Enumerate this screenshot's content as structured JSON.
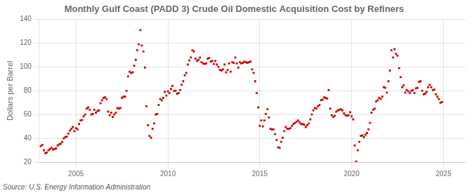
{
  "chart_data": {
    "type": "scatter",
    "title": "Monthly Gulf Coast (PADD 3) Crude Oil Domestic Acquisition Cost by Refiners",
    "y_label": "Dollars per Barrel",
    "annotations": [
      "Source: U.S. Energy Information Administration"
    ],
    "color": "#cc0000",
    "marker": "square",
    "grid": true,
    "xlim": [
      2003.0,
      2026.2
    ],
    "xticks": [
      2005,
      2010,
      2015,
      2020,
      2025
    ],
    "ylim": [
      20,
      140
    ],
    "yticks": [
      20,
      40,
      60,
      80,
      100,
      120,
      140
    ],
    "x": [
      2003.083,
      2003.167,
      2003.25,
      2003.333,
      2003.417,
      2003.5,
      2003.583,
      2003.667,
      2003.75,
      2003.833,
      2003.917,
      2004.0,
      2004.083,
      2004.167,
      2004.25,
      2004.333,
      2004.417,
      2004.5,
      2004.583,
      2004.667,
      2004.75,
      2004.833,
      2004.917,
      2005.0,
      2005.083,
      2005.167,
      2005.25,
      2005.333,
      2005.417,
      2005.5,
      2005.583,
      2005.667,
      2005.75,
      2005.833,
      2005.917,
      2006.0,
      2006.083,
      2006.167,
      2006.25,
      2006.333,
      2006.417,
      2006.5,
      2006.583,
      2006.667,
      2006.75,
      2006.833,
      2006.917,
      2007.0,
      2007.083,
      2007.167,
      2007.25,
      2007.333,
      2007.417,
      2007.5,
      2007.583,
      2007.667,
      2007.75,
      2007.833,
      2007.917,
      2008.0,
      2008.083,
      2008.167,
      2008.25,
      2008.333,
      2008.417,
      2008.5,
      2008.583,
      2008.667,
      2008.75,
      2008.833,
      2008.917,
      2009.0,
      2009.083,
      2009.167,
      2009.25,
      2009.333,
      2009.417,
      2009.5,
      2009.583,
      2009.667,
      2009.75,
      2009.833,
      2009.917,
      2010.0,
      2010.083,
      2010.167,
      2010.25,
      2010.333,
      2010.417,
      2010.5,
      2010.583,
      2010.667,
      2010.75,
      2010.833,
      2010.917,
      2011.0,
      2011.083,
      2011.167,
      2011.25,
      2011.333,
      2011.417,
      2011.5,
      2011.583,
      2011.667,
      2011.75,
      2011.833,
      2011.917,
      2012.0,
      2012.083,
      2012.167,
      2012.25,
      2012.333,
      2012.417,
      2012.5,
      2012.583,
      2012.667,
      2012.75,
      2012.833,
      2012.917,
      2013.0,
      2013.083,
      2013.167,
      2013.25,
      2013.333,
      2013.417,
      2013.5,
      2013.583,
      2013.667,
      2013.75,
      2013.833,
      2013.917,
      2014.0,
      2014.083,
      2014.167,
      2014.25,
      2014.333,
      2014.417,
      2014.5,
      2014.583,
      2014.667,
      2014.75,
      2014.833,
      2014.917,
      2015.0,
      2015.083,
      2015.167,
      2015.25,
      2015.333,
      2015.417,
      2015.5,
      2015.583,
      2015.667,
      2015.75,
      2015.833,
      2015.917,
      2016.0,
      2016.083,
      2016.167,
      2016.25,
      2016.333,
      2016.417,
      2016.5,
      2016.583,
      2016.667,
      2016.75,
      2016.833,
      2016.917,
      2017.0,
      2017.083,
      2017.167,
      2017.25,
      2017.333,
      2017.417,
      2017.5,
      2017.583,
      2017.667,
      2017.75,
      2017.833,
      2017.917,
      2018.0,
      2018.083,
      2018.167,
      2018.25,
      2018.333,
      2018.417,
      2018.5,
      2018.583,
      2018.667,
      2018.75,
      2018.833,
      2018.917,
      2019.0,
      2019.083,
      2019.167,
      2019.25,
      2019.333,
      2019.417,
      2019.5,
      2019.583,
      2019.667,
      2019.75,
      2019.833,
      2019.917,
      2020.0,
      2020.083,
      2020.167,
      2020.25,
      2020.333,
      2020.417,
      2020.5,
      2020.583,
      2020.667,
      2020.75,
      2020.833,
      2020.917,
      2021.0,
      2021.083,
      2021.167,
      2021.25,
      2021.333,
      2021.417,
      2021.5,
      2021.583,
      2021.667,
      2021.75,
      2021.833,
      2021.917,
      2022.0,
      2022.083,
      2022.167,
      2022.25,
      2022.333,
      2022.417,
      2022.5,
      2022.583,
      2022.667,
      2022.75,
      2022.833,
      2022.917,
      2023.0,
      2023.083,
      2023.167,
      2023.25,
      2023.333,
      2023.417,
      2023.5,
      2023.583,
      2023.667,
      2023.75,
      2023.833,
      2023.917,
      2024.0,
      2024.083,
      2024.167,
      2024.25,
      2024.333,
      2024.417,
      2024.5,
      2024.583,
      2024.667,
      2024.75,
      2024.833,
      2024.917
    ],
    "values": [
      33.5,
      34.5,
      30.0,
      27.5,
      28.0,
      30.0,
      31.0,
      32.0,
      30.5,
      31.0,
      31.5,
      34.0,
      35.0,
      35.5,
      37.0,
      40.0,
      41.0,
      41.5,
      44.0,
      46.5,
      48.0,
      49.5,
      46.0,
      48.5,
      47.5,
      52.0,
      55.0,
      55.5,
      58.5,
      60.0,
      65.0,
      66.0,
      64.0,
      60.0,
      60.5,
      64.0,
      61.5,
      63.0,
      63.5,
      69.5,
      72.0,
      74.0,
      74.5,
      73.0,
      62.5,
      59.5,
      61.5,
      58.0,
      60.0,
      61.5,
      65.5,
      65.0,
      65.5,
      74.0,
      75.0,
      75.0,
      80.0,
      92.0,
      96.0,
      95.0,
      95.5,
      101.0,
      106.0,
      114.0,
      119.0,
      131.0,
      118.0,
      113.0,
      99.5,
      67.0,
      51.0,
      42.0,
      40.5,
      48.0,
      52.5,
      60.0,
      60.5,
      68.0,
      73.0,
      72.0,
      74.0,
      79.0,
      76.0,
      79.5,
      78.0,
      81.5,
      84.0,
      80.0,
      80.0,
      77.5,
      78.0,
      80.5,
      85.0,
      88.0,
      93.0,
      95.0,
      102.0,
      105.5,
      108.0,
      114.0,
      113.0,
      107.0,
      105.0,
      106.0,
      108.0,
      104.0,
      103.0,
      102.5,
      103.0,
      107.0,
      107.5,
      104.5,
      105.0,
      102.5,
      105.0,
      102.0,
      100.0,
      97.5,
      97.0,
      98.0,
      102.0,
      95.5,
      97.5,
      103.0,
      96.0,
      104.0,
      103.5,
      108.0,
      103.0,
      99.5,
      104.0,
      103.0,
      103.5,
      104.5,
      104.0,
      103.5,
      104.0,
      104.5,
      98.0,
      95.0,
      88.0,
      78.0,
      66.0,
      50.5,
      55.0,
      50.0,
      55.0,
      60.5,
      64.5,
      57.5,
      48.0,
      47.5,
      47.5,
      43.5,
      38.5,
      32.5,
      32.0,
      37.0,
      40.5,
      46.0,
      49.5,
      48.0,
      48.0,
      48.5,
      50.5,
      52.0,
      53.0,
      54.0,
      55.0,
      53.5,
      52.0,
      52.0,
      51.5,
      49.5,
      51.0,
      52.5,
      56.0,
      60.0,
      63.5,
      65.5,
      65.0,
      67.0,
      68.0,
      72.0,
      72.5,
      74.5,
      74.0,
      73.5,
      80.5,
      65.0,
      59.5,
      58.0,
      59.0,
      62.5,
      63.5,
      64.0,
      64.5,
      63.5,
      61.0,
      59.5,
      59.0,
      59.5,
      62.0,
      58.5,
      56.0,
      34.0,
      20.5,
      30.0,
      37.0,
      42.0,
      42.5,
      41.0,
      43.0,
      44.5,
      47.5,
      53.0,
      61.5,
      64.0,
      65.0,
      71.0,
      72.0,
      74.0,
      73.0,
      75.0,
      83.0,
      82.5,
      78.5,
      88.0,
      97.0,
      114.0,
      108.0,
      115.0,
      111.0,
      109.5,
      99.0,
      91.5,
      83.0,
      84.5,
      78.5,
      80.5,
      79.5,
      78.0,
      80.0,
      80.5,
      78.0,
      82.0,
      82.5,
      87.5,
      88.0,
      80.0,
      77.0,
      77.5,
      79.0,
      83.0,
      85.0,
      83.0,
      80.5,
      81.0,
      77.0,
      75.0,
      73.0,
      70.0,
      70.5
    ]
  }
}
